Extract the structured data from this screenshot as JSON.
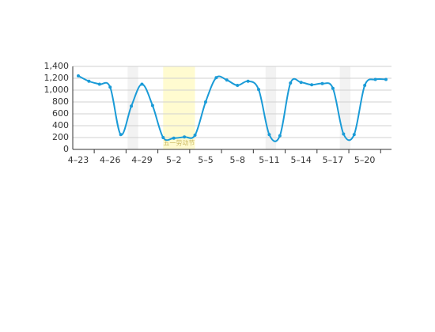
{
  "chart_data": {
    "type": "line",
    "categories": [
      "4–23",
      null,
      null,
      "4–26",
      null,
      null,
      "4–29",
      null,
      null,
      "5–2",
      null,
      null,
      "5–5",
      null,
      null,
      "5–8",
      null,
      null,
      "5–11",
      null,
      null,
      "5–14",
      null,
      null,
      "5–17",
      null,
      null,
      "5–20",
      null,
      null
    ],
    "series": [
      {
        "color": "#1a9bd7",
        "values": [
          1240,
          1150,
          1100,
          1050,
          250,
          730,
          1100,
          740,
          200,
          190,
          210,
          240,
          800,
          1210,
          1170,
          1080,
          1150,
          1010,
          250,
          230,
          1120,
          1130,
          1090,
          1110,
          1030,
          260,
          250,
          1080,
          1180,
          1180
        ]
      }
    ],
    "ylim": [
      0,
      1400
    ],
    "yticks": [
      0,
      200,
      400,
      600,
      800,
      {
        "value": 1000,
        "label": "1,000"
      },
      {
        "value": 1200,
        "label": "1,200"
      },
      {
        "value": 1400,
        "label": "1,400"
      }
    ],
    "grid": true,
    "highlight": {
      "label": "五一劳动节",
      "from": 8,
      "to": 11,
      "color": "#fffbd0"
    },
    "shaded": {
      "color": "#f2f2f2",
      "ranges": [
        [
          5,
          6
        ],
        [
          18,
          19
        ],
        [
          25,
          26
        ]
      ]
    }
  }
}
